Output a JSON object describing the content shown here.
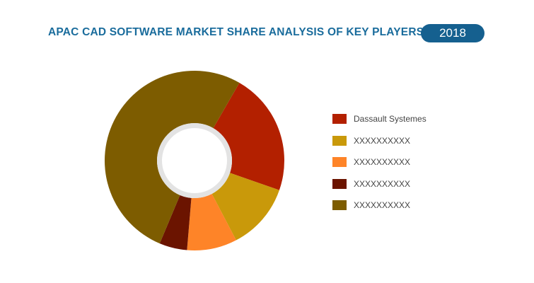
{
  "header": {
    "title": "APAC CAD SOFTWARE MARKET SHARE ANALYSIS OF KEY PLAYERS",
    "year": "2018"
  },
  "chart_data": {
    "type": "pie",
    "donut": true,
    "title": "APAC CAD SOFTWARE MARKET SHARE ANALYSIS OF KEY PLAYERS",
    "legend_position": "right",
    "categories": [
      "Dassault Systemes",
      "XXXXXXXXXX",
      "XXXXXXXXXX",
      "XXXXXXXXXX",
      "XXXXXXXXXX"
    ],
    "values": [
      22,
      12,
      9,
      5,
      52
    ],
    "colors": [
      "#b32000",
      "#c9990a",
      "#fe8428",
      "#6b1400",
      "#7d5c00"
    ]
  }
}
